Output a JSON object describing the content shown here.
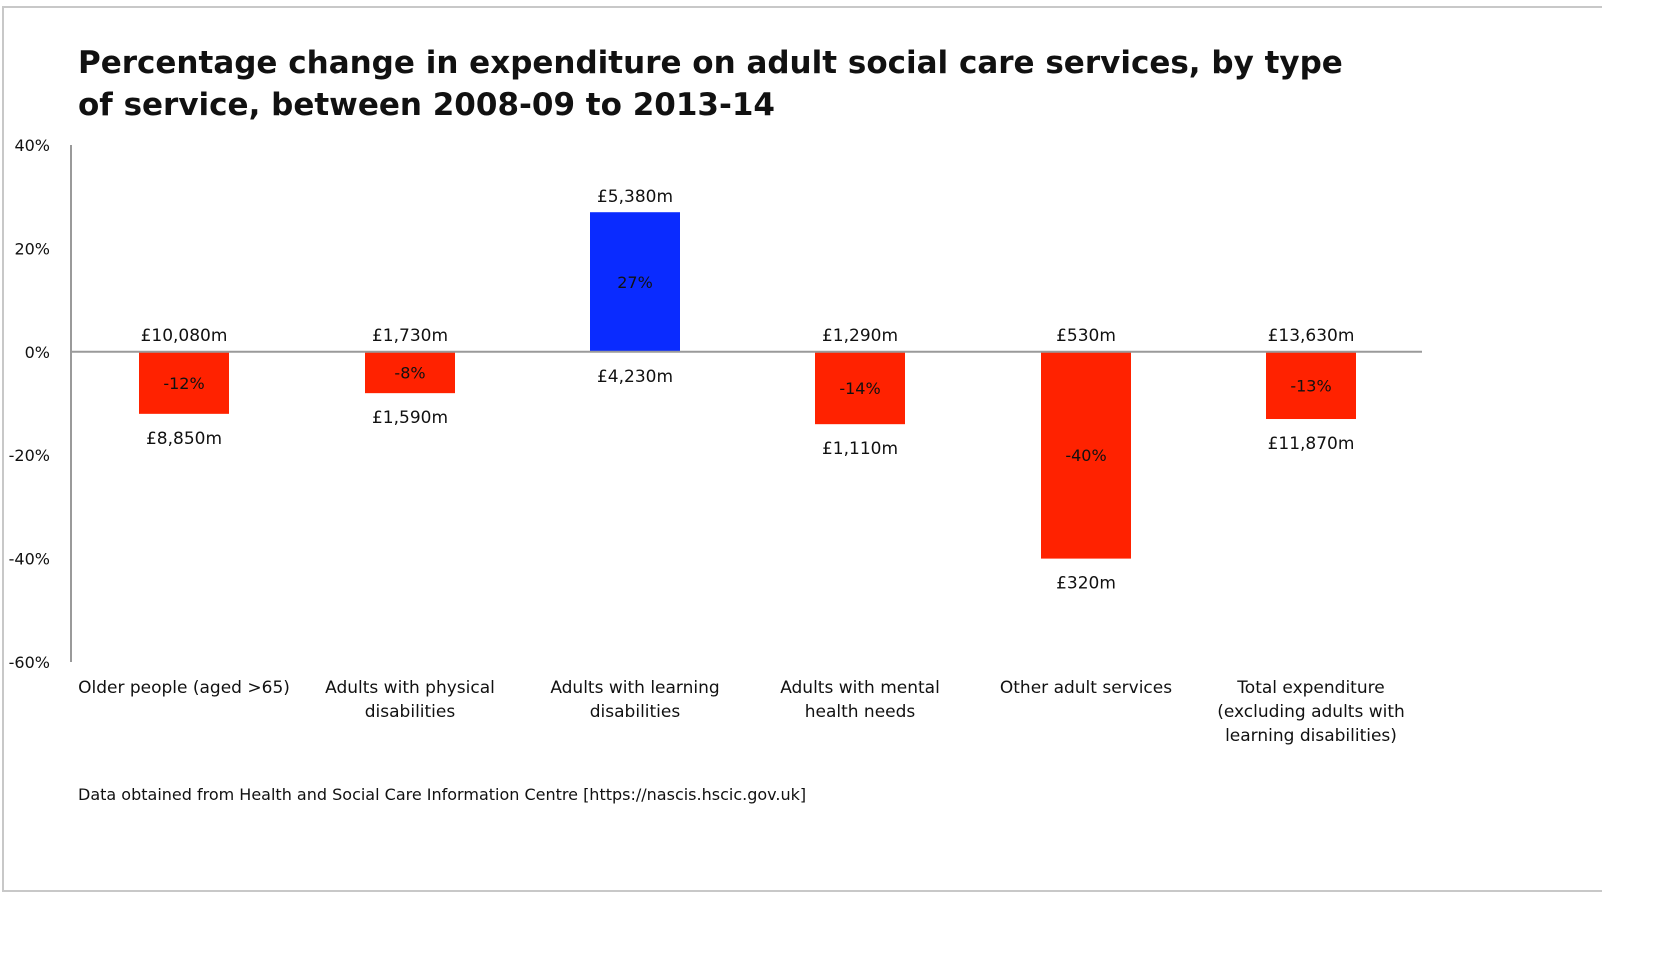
{
  "chart_data": {
    "type": "bar",
    "title": "Percentage change in expenditure on adult social care services, by type of service, between 2008-09 to 2013-14",
    "xlabel": "",
    "ylabel": "",
    "ylim": [
      -60,
      40
    ],
    "y_ticks": [
      40,
      20,
      0,
      -20,
      -40,
      -60
    ],
    "y_tick_labels": [
      "40%",
      "20%",
      "0%",
      "-20%",
      "-40%",
      "-60%"
    ],
    "grid": false,
    "legend": "none",
    "categories": [
      "Older people (aged >65)",
      "Adults with physical disabilities",
      "Adults with learning disabilities",
      "Adults with mental health needs",
      "Other adult services",
      "Total expenditure (excluding adults with learning disabilities)"
    ],
    "category_label_lines": [
      [
        "Older people (aged >65)"
      ],
      [
        "Adults with physical",
        "disabilities"
      ],
      [
        "Adults with learning",
        "disabilities"
      ],
      [
        "Adults with mental",
        "health needs"
      ],
      [
        "Other adult services"
      ],
      [
        "Total expenditure",
        "(excluding adults with",
        "learning disabilities)"
      ]
    ],
    "values": [
      -12,
      -8,
      27,
      -14,
      -40,
      -13
    ],
    "value_labels": [
      "-12%",
      "-8%",
      "27%",
      "-14%",
      "-40%",
      "-13%"
    ],
    "expenditure_2008_09": [
      "£10,080m",
      "£1,730m",
      "£4,230m",
      "£1,290m",
      "£530m",
      "£13,630m"
    ],
    "expenditure_2013_14": [
      "£8,850m",
      "£1,590m",
      "£5,380m",
      "£1,110m",
      "£320m",
      "£11,870m"
    ],
    "colors": {
      "increase": "#0a2bff",
      "decrease": "#ff2200",
      "axis": "#9a9a9a",
      "text": "#111111"
    }
  },
  "source_note": "Data obtained from Health and Social Care Information Centre [https://nascis.hscic.gov.uk]"
}
